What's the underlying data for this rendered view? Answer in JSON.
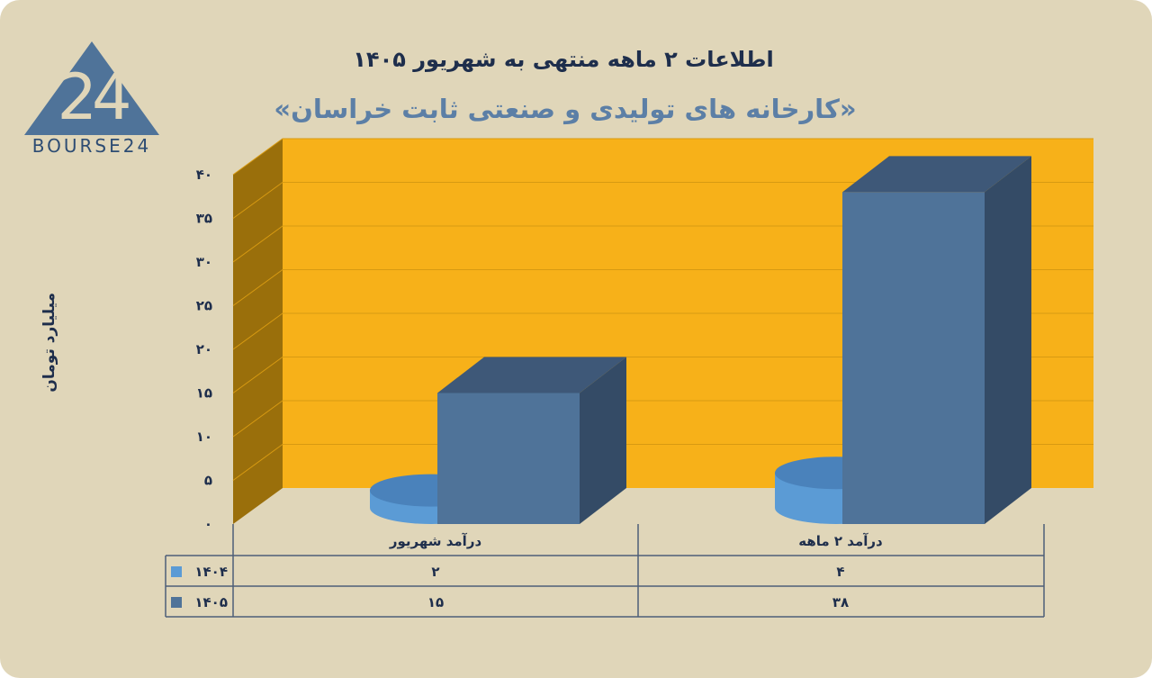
{
  "title": "اطلاعات ۲ ماهه منتهی به شهریور ۱۴۰۵",
  "subtitle": "«کارخانه های تولیدی و صنعتی ثابت خراسان»",
  "logo_text": "BOURSE24",
  "colors": {
    "background": "#e0d6b9",
    "plot_back": "#f7b119",
    "plot_side": "#9a6f0b",
    "series_1404": "#5b9bd5",
    "series_1405": "#4f7399"
  },
  "chart_data": {
    "type": "bar",
    "categories": [
      "درآمد ۲ ماهه",
      "درآمد  شهریور"
    ],
    "series": [
      {
        "name": "۱۴۰۴",
        "values": [
          4,
          2
        ]
      },
      {
        "name": "۱۴۰۵",
        "values": [
          38,
          15
        ]
      }
    ],
    "value_labels": {
      "۱۴۰۴": [
        "۴",
        "۲"
      ],
      "۱۴۰۵": [
        "۳۸",
        "۱۵"
      ]
    },
    "ylabel": "میلیارد تومان",
    "ylim": [
      0,
      40
    ],
    "yticks": [
      0,
      5,
      10,
      15,
      20,
      25,
      30,
      35,
      40
    ],
    "ytick_labels": [
      "۰",
      "۵",
      "۱۰",
      "۱۵",
      "۲۰",
      "۲۵",
      "۳۰",
      "۳۵",
      "۴۰"
    ],
    "grid": true,
    "legend": "data-table",
    "style": "3d"
  }
}
